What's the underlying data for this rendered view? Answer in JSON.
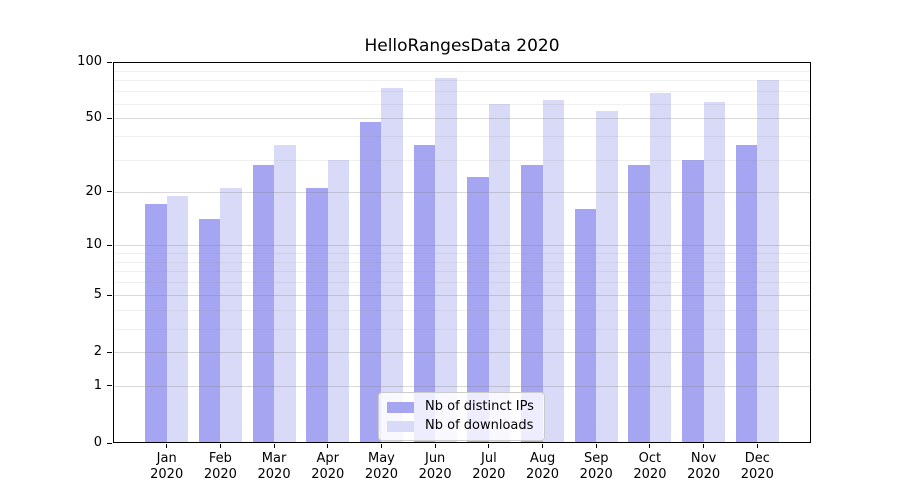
{
  "title": "HelloRangesData 2020",
  "chart_data": {
    "type": "bar",
    "title": "HelloRangesData 2020",
    "categories": [
      "Jan",
      "Feb",
      "Mar",
      "Apr",
      "May",
      "Jun",
      "Jul",
      "Aug",
      "Sep",
      "Oct",
      "Nov",
      "Dec"
    ],
    "category_year": "2020",
    "series": [
      {
        "name": "Nb of distinct IPs",
        "color": "#a5a5f2",
        "values": [
          17,
          14,
          28,
          21,
          48,
          36,
          24,
          28,
          16,
          28,
          30,
          36
        ]
      },
      {
        "name": "Nb of downloads",
        "color": "#d9d9f8",
        "values": [
          19,
          21,
          36,
          30,
          73,
          82,
          60,
          63,
          55,
          68,
          61,
          80
        ]
      }
    ],
    "y_scale": "log1p",
    "ylim": [
      0,
      100
    ],
    "y_ticks": [
      0,
      1,
      2,
      5,
      10,
      20,
      50,
      100
    ],
    "y_minor_ticks": [
      3,
      4,
      6,
      7,
      8,
      9,
      30,
      40,
      60,
      70,
      80,
      90
    ],
    "grid": true,
    "legend_position": "lower center",
    "background_color": "#ffffff",
    "axis_color": "#000000",
    "grid_color_major": "#d9d9d9",
    "grid_color_minor": "#efefef"
  }
}
